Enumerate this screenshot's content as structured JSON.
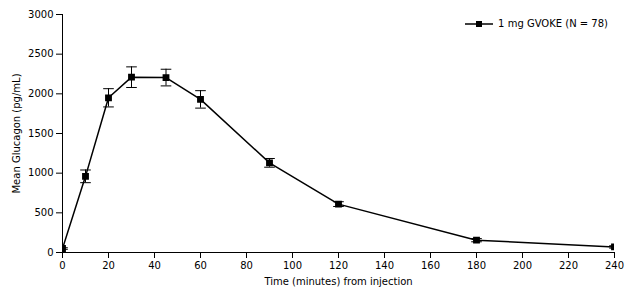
{
  "chart_data": {
    "type": "line",
    "xlabel": "Time (minutes) from injection",
    "ylabel": "Mean Glucagon (pg/mL)",
    "x": [
      0,
      10,
      20,
      30,
      45,
      60,
      90,
      120,
      180,
      240
    ],
    "series": [
      {
        "name": "1 mg GVOKE (N = 78)",
        "color": "#000000",
        "marker": "square",
        "values": [
          50,
          960,
          1950,
          2210,
          2205,
          1930,
          1130,
          610,
          155,
          70
        ],
        "errors": [
          10,
          80,
          115,
          130,
          105,
          110,
          55,
          30,
          20,
          15
        ]
      }
    ],
    "xlim": [
      0,
      240
    ],
    "xticks": [
      0,
      20,
      40,
      60,
      80,
      100,
      120,
      140,
      160,
      180,
      200,
      220,
      240
    ],
    "ylim": [
      0,
      3000
    ],
    "yticks": [
      0,
      500,
      1000,
      1500,
      2000,
      2500,
      3000
    ],
    "grid": false,
    "legend": "upper right"
  }
}
